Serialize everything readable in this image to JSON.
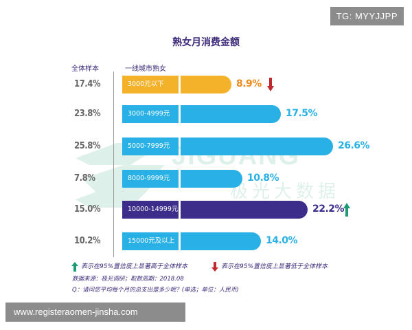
{
  "watermark_tag": "TG: MYYJJPP",
  "watermark_brand": {
    "latin": "JIGUANG",
    "cn": "极光大数据"
  },
  "site_banner": "www.registeraomen-jinsha.com",
  "colors": {
    "highlight_low": "#f4b12a",
    "normal": "#29b1e6",
    "highlight_high": "#3c2d8a",
    "up": "#1e9b74",
    "down": "#c0282e",
    "text": "#3d2a7a"
  },
  "chart_data": {
    "type": "bar",
    "title": "熟女月消费金额",
    "column_headers": {
      "overall": "全体样本",
      "city": "一线城市熟女"
    },
    "rows": [
      {
        "category": "3000元以下",
        "overall": "17.4%",
        "value": 8.9,
        "label": "8.9%",
        "color": "#f4b12a",
        "label_color": "#f08a1c",
        "marker": "down"
      },
      {
        "category": "3000-4999元",
        "overall": "23.8%",
        "value": 17.5,
        "label": "17.5%",
        "color": "#29b1e6",
        "label_color": "#29b1e6",
        "marker": ""
      },
      {
        "category": "5000-7999元",
        "overall": "25.8%",
        "value": 26.6,
        "label": "26.6%",
        "color": "#29b1e6",
        "label_color": "#29b1e6",
        "marker": ""
      },
      {
        "category": "8000-9999元",
        "overall": "7.8%",
        "value": 10.8,
        "label": "10.8%",
        "color": "#29b1e6",
        "label_color": "#29b1e6",
        "marker": ""
      },
      {
        "category": "10000-14999元",
        "overall": "15.0%",
        "value": 22.2,
        "label": "22.2%",
        "color": "#3c2d8a",
        "label_color": "#3c2d8a",
        "marker": "up"
      },
      {
        "category": "15000元及以上",
        "overall": "10.2%",
        "value": 14.0,
        "label": "14.0%",
        "color": "#29b1e6",
        "label_color": "#29b1e6",
        "marker": ""
      }
    ],
    "xlim": [
      0,
      26.6
    ],
    "legend": {
      "up": "表示在95%置信度上显著高于全体样本",
      "down": "表示在95%置信度上显著低于全体样本"
    },
    "source": "数据来源：极光调研；取数周期：2018.08",
    "question": "Q：请问您平均每个月的总支出是多少呢？(单选；单位：人民币)"
  }
}
